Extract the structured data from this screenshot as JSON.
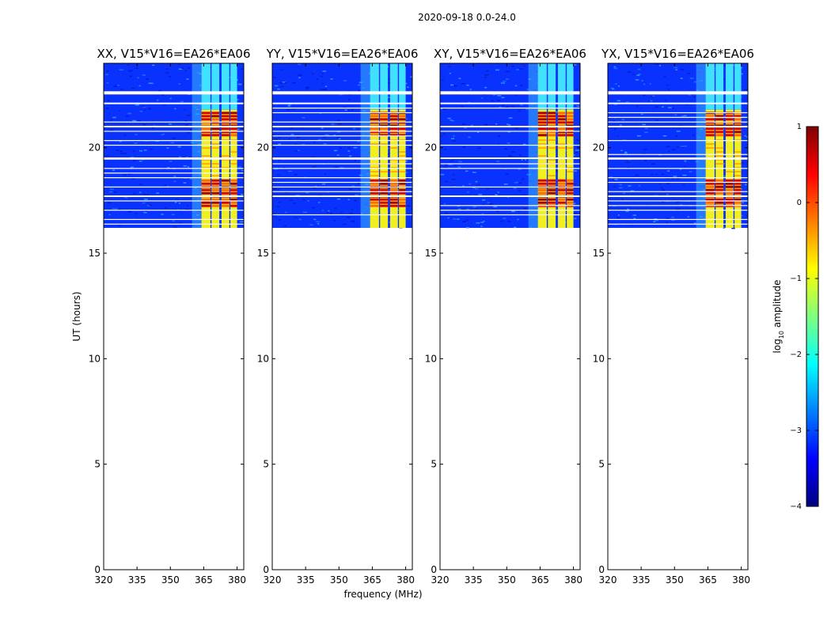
{
  "figure": {
    "suptitle": "2020-09-18 0.0-24.0",
    "xlabel": "frequency (MHz)",
    "ylabel": "UT (hours)"
  },
  "chart_data": [
    {
      "type": "heatmap",
      "title": "XX, V15*V16=EA26*EA06",
      "xlim": [
        320,
        383
      ],
      "ylim": [
        0,
        24
      ],
      "x_ticks": [
        320,
        335,
        350,
        365,
        380
      ],
      "y_ticks": [
        0,
        5,
        10,
        15,
        20
      ],
      "data_time_range": [
        16.2,
        24
      ],
      "flagged_rows_ut": [
        22.6,
        17.7,
        22.1,
        21.0,
        19.5
      ],
      "channel_blocks_mhz": [
        [
          364,
          368
        ],
        [
          368.5,
          372
        ],
        [
          373,
          376.5
        ],
        [
          377,
          380
        ]
      ],
      "bright_bands_ut": [
        [
          20.5,
          21.7
        ],
        [
          17.2,
          18.5
        ]
      ]
    },
    {
      "type": "heatmap",
      "title": "YY, V15*V16=EA26*EA06",
      "xlim": [
        320,
        383
      ],
      "ylim": [
        0,
        24
      ],
      "x_ticks": [
        320,
        335,
        350,
        365,
        380
      ],
      "y_ticks": [
        0,
        5,
        10,
        15,
        20
      ],
      "data_time_range": [
        16.2,
        24
      ],
      "flagged_rows_ut": [
        22.6,
        17.7,
        22.1,
        21.0,
        19.5
      ],
      "channel_blocks_mhz": [
        [
          364,
          368
        ],
        [
          368.5,
          372
        ],
        [
          373,
          376.5
        ],
        [
          377,
          380
        ]
      ],
      "bright_bands_ut": [
        [
          20.5,
          21.7
        ],
        [
          17.2,
          18.5
        ]
      ]
    },
    {
      "type": "heatmap",
      "title": "XY, V15*V16=EA26*EA06",
      "xlim": [
        320,
        383
      ],
      "ylim": [
        0,
        24
      ],
      "x_ticks": [
        320,
        335,
        350,
        365,
        380
      ],
      "y_ticks": [
        0,
        5,
        10,
        15,
        20
      ],
      "data_time_range": [
        16.2,
        24
      ],
      "flagged_rows_ut": [
        22.6,
        17.7,
        22.1,
        21.0,
        19.5
      ],
      "channel_blocks_mhz": [
        [
          364,
          368
        ],
        [
          368.5,
          372
        ],
        [
          373,
          376.5
        ],
        [
          377,
          380
        ]
      ],
      "bright_bands_ut": [
        [
          20.5,
          21.7
        ],
        [
          17.2,
          18.5
        ]
      ]
    },
    {
      "type": "heatmap",
      "title": "YX, V15*V16=EA26*EA06",
      "xlim": [
        320,
        383
      ],
      "ylim": [
        0,
        24
      ],
      "x_ticks": [
        320,
        335,
        350,
        365,
        380
      ],
      "y_ticks": [
        0,
        5,
        10,
        15,
        20
      ],
      "data_time_range": [
        16.2,
        24
      ],
      "flagged_rows_ut": [
        22.6,
        17.7,
        22.1,
        21.0,
        19.5
      ],
      "channel_blocks_mhz": [
        [
          364,
          368
        ],
        [
          368.5,
          372
        ],
        [
          373,
          376.5
        ],
        [
          377,
          380
        ]
      ],
      "bright_bands_ut": [
        [
          20.5,
          21.7
        ],
        [
          17.2,
          18.5
        ]
      ]
    }
  ],
  "colorbar": {
    "label_prefix": "log",
    "label_sub": "10",
    "label_suffix": " amplitude",
    "range": [
      -4,
      1
    ],
    "ticks": [
      1,
      0,
      -1,
      -2,
      -3,
      -4
    ],
    "tick_labels": [
      "1",
      "0",
      "−1",
      "−2",
      "−3",
      "−4"
    ],
    "colors": [
      "#00007f",
      "#0000ff",
      "#007fff",
      "#00ffff",
      "#7fff7f",
      "#ffff00",
      "#ff7f00",
      "#ff0000",
      "#7f0000"
    ]
  }
}
